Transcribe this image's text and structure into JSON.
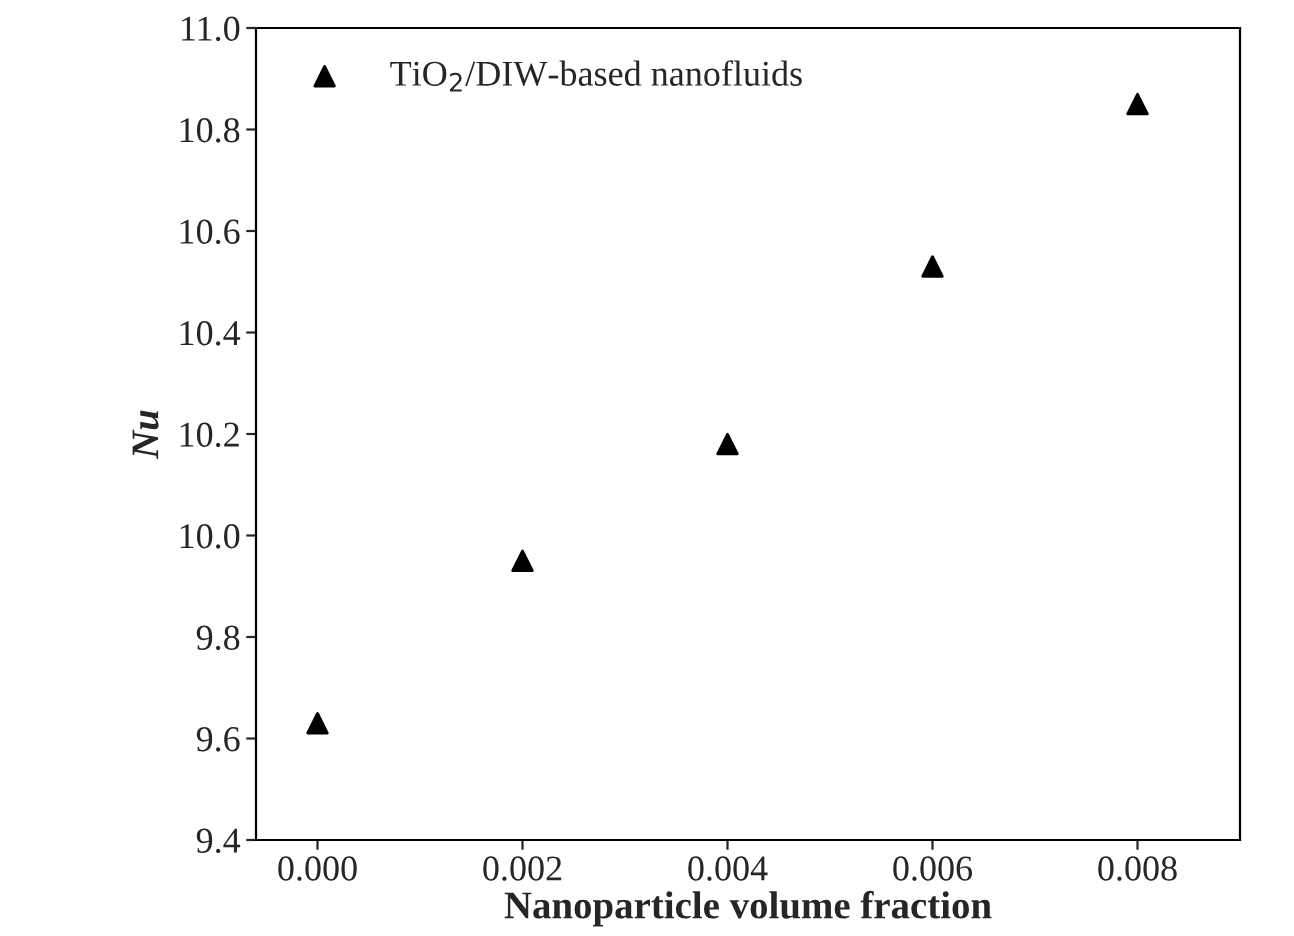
{
  "chart_data": {
    "type": "scatter",
    "xlabel": "Nanoparticle volume fraction",
    "ylabel": "Nu",
    "x": [
      0.0,
      0.002,
      0.004,
      0.006,
      0.008
    ],
    "series": [
      {
        "name": "TiO$_{2}$/DIW-based nanofluids",
        "color": "#000000",
        "values": [
          9.63,
          9.95,
          10.18,
          10.53,
          10.85
        ]
      }
    ],
    "xlim": [
      -0.0006,
      0.009
    ],
    "xticks": [
      {
        "value": 0.0,
        "label": "0.000"
      },
      {
        "value": 0.002,
        "label": "0.002"
      },
      {
        "value": 0.004,
        "label": "0.004"
      },
      {
        "value": 0.006,
        "label": "0.006"
      },
      {
        "value": 0.008,
        "label": "0.008"
      }
    ],
    "ylim": [
      9.4,
      11.0
    ],
    "yticks": [
      {
        "value": 9.4,
        "label": "9.4"
      },
      {
        "value": 9.6,
        "label": "9.6"
      },
      {
        "value": 9.8,
        "label": "9.8"
      },
      {
        "value": 10.0,
        "label": "10.0"
      },
      {
        "value": 10.2,
        "label": "10.2"
      },
      {
        "value": 10.4,
        "label": "10.4"
      },
      {
        "value": 10.6,
        "label": "10.6"
      },
      {
        "value": 10.8,
        "label": "10.8"
      },
      {
        "value": 11.0,
        "label": "11.0"
      }
    ],
    "marker": "triangle",
    "legend": "top left",
    "grid": false
  }
}
